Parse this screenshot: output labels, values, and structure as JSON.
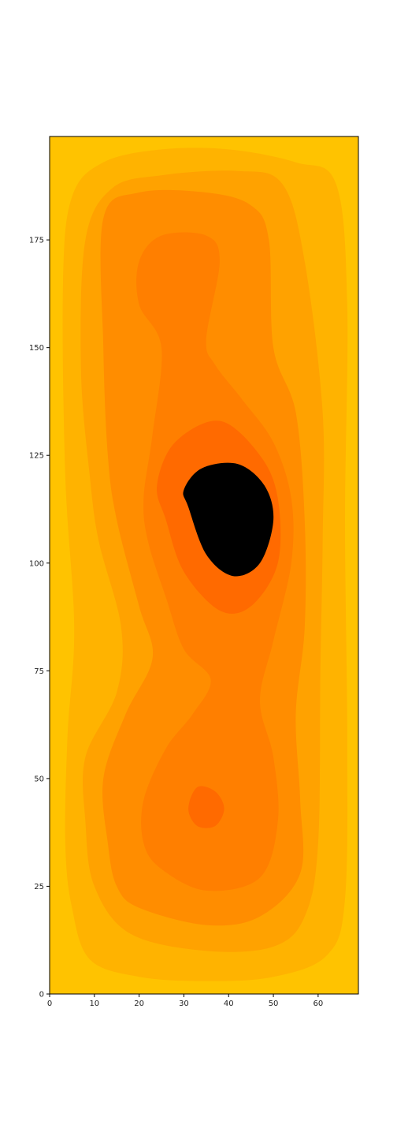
{
  "chart_data": {
    "type": "contour",
    "title": "",
    "xlabel": "",
    "ylabel": "",
    "xlim": [
      0,
      69
    ],
    "ylim": [
      0,
      199
    ],
    "x_ticks": [
      0,
      10,
      20,
      30,
      40,
      50,
      60
    ],
    "y_ticks": [
      0,
      25,
      50,
      75,
      100,
      125,
      150,
      175
    ],
    "grid": false,
    "legend": "none",
    "level_colors": [
      "#ffc300",
      "#ffb300",
      "#ffa200",
      "#ff8d00",
      "#ff7f00",
      "#ff6a00"
    ],
    "regions": [
      {
        "level": 1,
        "points": [
          [
            5,
            20
          ],
          [
            9,
            8
          ],
          [
            20,
            4
          ],
          [
            35,
            3
          ],
          [
            50,
            4
          ],
          [
            62,
            9
          ],
          [
            66,
            22
          ],
          [
            66.5,
            60
          ],
          [
            66,
            110
          ],
          [
            66.5,
            160
          ],
          [
            64,
            188
          ],
          [
            55,
            193
          ],
          [
            40,
            196
          ],
          [
            25,
            196
          ],
          [
            12,
            193
          ],
          [
            5,
            185
          ],
          [
            3,
            165
          ],
          [
            3.5,
            120
          ],
          [
            5.5,
            85
          ],
          [
            4,
            60
          ],
          [
            3.5,
            35
          ]
        ]
      },
      {
        "level": 2,
        "points": [
          [
            10,
            25
          ],
          [
            18,
            14
          ],
          [
            35,
            10
          ],
          [
            50,
            11
          ],
          [
            57,
            18
          ],
          [
            60,
            35
          ],
          [
            60.5,
            75
          ],
          [
            61,
            105
          ],
          [
            61,
            135
          ],
          [
            57,
            170
          ],
          [
            52,
            188
          ],
          [
            42,
            191
          ],
          [
            25,
            190
          ],
          [
            14,
            187
          ],
          [
            8,
            175
          ],
          [
            7,
            145
          ],
          [
            9,
            120
          ],
          [
            11,
            105
          ],
          [
            16,
            85
          ],
          [
            15,
            70
          ],
          [
            8,
            55
          ],
          [
            8,
            40
          ]
        ]
      },
      {
        "level": 3,
        "points": [
          [
            13,
            35
          ],
          [
            15,
            25
          ],
          [
            20,
            20
          ],
          [
            35,
            16
          ],
          [
            47,
            18
          ],
          [
            56,
            28
          ],
          [
            56,
            45
          ],
          [
            55,
            65
          ],
          [
            57,
            85
          ],
          [
            57,
            110
          ],
          [
            55,
            135
          ],
          [
            50,
            150
          ],
          [
            49,
            175
          ],
          [
            45,
            183
          ],
          [
            35,
            186
          ],
          [
            20,
            186
          ],
          [
            12,
            180
          ],
          [
            12,
            150
          ],
          [
            13,
            125
          ],
          [
            15,
            110
          ],
          [
            20,
            90
          ],
          [
            23,
            78
          ],
          [
            17,
            65
          ],
          [
            12,
            50
          ]
        ]
      },
      {
        "level": 4,
        "points": [
          [
            21,
            35
          ],
          [
            25,
            29
          ],
          [
            35,
            24
          ],
          [
            47,
            27
          ],
          [
            51,
            40
          ],
          [
            50,
            55
          ],
          [
            47,
            68
          ],
          [
            50,
            82
          ],
          [
            54,
            100
          ],
          [
            54,
            115
          ],
          [
            50,
            128
          ],
          [
            43,
            138
          ],
          [
            37,
            146
          ],
          [
            35,
            152
          ],
          [
            38,
            170
          ],
          [
            35,
            176
          ],
          [
            25,
            176
          ],
          [
            20,
            170
          ],
          [
            20,
            160
          ],
          [
            25,
            150
          ],
          [
            23,
            130
          ],
          [
            21,
            115
          ],
          [
            22,
            105
          ],
          [
            26,
            92
          ],
          [
            30,
            80
          ],
          [
            36,
            73
          ],
          [
            32,
            65
          ],
          [
            26,
            57
          ],
          [
            21,
            45
          ]
        ]
      },
      {
        "level": 5,
        "points": [
          [
            26,
            110
          ],
          [
            30,
            98
          ],
          [
            38,
            89
          ],
          [
            45,
            90
          ],
          [
            51,
            100
          ],
          [
            51,
            115
          ],
          [
            47,
            125
          ],
          [
            38,
            133
          ],
          [
            28,
            128
          ],
          [
            24,
            118
          ]
        ]
      },
      {
        "level": 5,
        "points": [
          [
            31,
            43
          ],
          [
            33,
            39
          ],
          [
            37,
            39
          ],
          [
            39,
            43
          ],
          [
            37,
            47
          ],
          [
            33,
            48
          ]
        ]
      },
      {
        "level": 6,
        "points": [
          [
            31,
            113
          ],
          [
            35,
            102
          ],
          [
            41,
            97
          ],
          [
            47,
            100
          ],
          [
            50,
            110
          ],
          [
            48,
            118
          ],
          [
            42,
            123
          ],
          [
            34,
            122
          ],
          [
            30,
            117
          ]
        ]
      }
    ]
  }
}
